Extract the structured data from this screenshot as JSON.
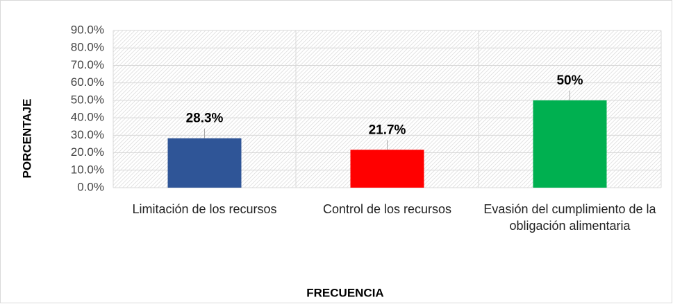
{
  "chart_data": {
    "type": "bar",
    "categories": [
      "Limitación de los recursos",
      "Control de los recursos",
      "Evasión del cumplimiento de la obligación alimentaria"
    ],
    "values": [
      28.3,
      21.7,
      50
    ],
    "value_labels": [
      "28.3%",
      "21.7%",
      "50%"
    ],
    "colors": [
      "#2f5597",
      "#ff0000",
      "#00b050"
    ],
    "ylim": [
      0,
      90
    ],
    "yticks": [
      {
        "value": 0,
        "label": "0.0%"
      },
      {
        "value": 10,
        "label": "10.0%"
      },
      {
        "value": 20,
        "label": "20.0%"
      },
      {
        "value": 30,
        "label": "30.0%"
      },
      {
        "value": 40,
        "label": "40.0%"
      },
      {
        "value": 50,
        "label": "50.0%"
      },
      {
        "value": 60,
        "label": "60.0%"
      },
      {
        "value": 70,
        "label": "70.0%"
      },
      {
        "value": 80,
        "label": "80.0%"
      },
      {
        "value": 90,
        "label": "90.0%"
      }
    ],
    "ylabel": "PORCENTAJE",
    "xlabel": "FRECUENCIA",
    "grid": true
  }
}
